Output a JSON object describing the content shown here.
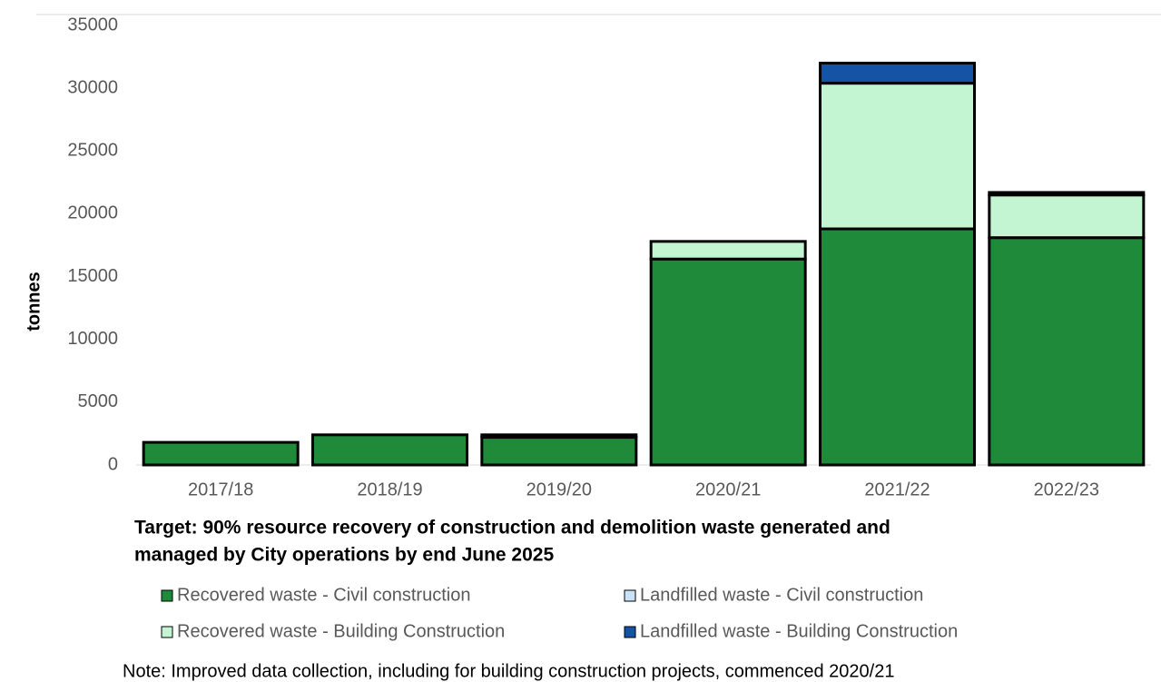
{
  "chart_data": {
    "type": "bar",
    "stacked": true,
    "title": [
      "Target: 90% resource recovery of construction and demolition waste generated and",
      "managed by City operations by end June 2025"
    ],
    "y_label": "tonnes",
    "note": "Note: Improved data collection, including for building construction projects, commenced 2020/21",
    "categories": [
      "2017/18",
      "2018/19",
      "2019/20",
      "2020/21",
      "2021/22",
      "2022/23"
    ],
    "series": [
      {
        "name": "Recovered waste - Civil construction",
        "color": "#1e8a3a",
        "values": [
          1800,
          2400,
          2200,
          16400,
          18800,
          18100
        ]
      },
      {
        "name": "Landfilled waste - Civil construction",
        "color": "#c9e2f7",
        "values": [
          0,
          0,
          0,
          0,
          0,
          0
        ]
      },
      {
        "name": "Recovered waste - Building Construction",
        "color": "#c4f5d2",
        "values": [
          0,
          0,
          200,
          1400,
          11600,
          3400
        ]
      },
      {
        "name": "Landfilled waste - Building Construction",
        "color": "#1554a5",
        "values": [
          0,
          0,
          0,
          0,
          1600,
          200
        ]
      }
    ],
    "ylim": [
      0,
      35000
    ],
    "yticks": [
      0,
      5000,
      10000,
      15000,
      20000,
      25000,
      30000,
      35000
    ],
    "grid": false,
    "legend": "bottom"
  }
}
